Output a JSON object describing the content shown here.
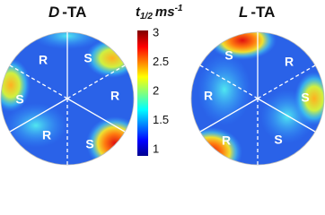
{
  "panels": [
    {
      "title": {
        "italic": "D",
        "rest": "-TA"
      },
      "sectors": [
        "R",
        "S",
        "S",
        "R",
        "R",
        "S"
      ]
    },
    {
      "title": {
        "italic": "L",
        "rest": "-TA"
      },
      "sectors": [
        "S",
        "R",
        "R",
        "S",
        "R",
        "S"
      ]
    }
  ],
  "colorbar": {
    "label": {
      "t": "t",
      "sub": "1/2",
      "unit": "ms",
      "sup": "-1"
    },
    "ticks": [
      "3",
      "2.5",
      "2",
      "1.5",
      "1"
    ]
  }
}
